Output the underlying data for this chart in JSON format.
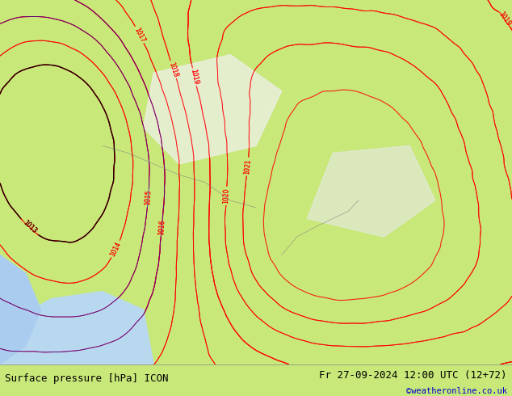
{
  "title_left": "Surface pressure [hPa] ICON",
  "title_right": "Fr 27-09-2024 12:00 UTC (12+72)",
  "copyright": "©weatheronline.co.uk",
  "bg_color": "#c8e87a",
  "land_color": "#c8e87a",
  "sea_color": "#a0d0f0",
  "contour_color_red": "#ff0000",
  "contour_color_black": "#000000",
  "contour_color_blue": "#0000cc",
  "text_color_bottom": "#000000",
  "copyright_color": "#0000cc",
  "figsize": [
    6.34,
    4.9
  ],
  "dpi": 100,
  "bottom_bar_color": "#c8e87a",
  "pressure_min": 1012,
  "pressure_max": 1024,
  "pressure_step": 1
}
